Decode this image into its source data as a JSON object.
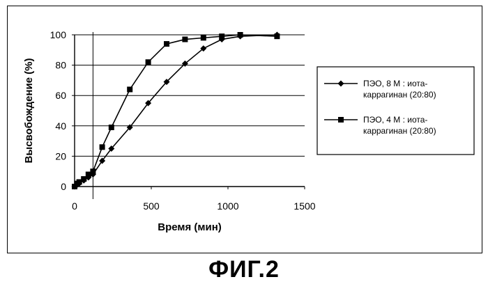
{
  "figure_caption": "ФИГ.2",
  "chart_data": {
    "type": "line",
    "title": "",
    "xlabel": "Время (мин)",
    "ylabel": "Высвобождение (%)",
    "xlim": [
      0,
      1500
    ],
    "ylim": [
      0,
      100
    ],
    "x_ticks": [
      "0",
      "500",
      "1000",
      "1500"
    ],
    "y_ticks": [
      "0",
      "20",
      "40",
      "60",
      "80",
      "100"
    ],
    "grid": "horizontal",
    "legend_position": "right",
    "series": [
      {
        "name_lines": [
          "ПЭО, 8 М : иота-",
          "каррагинан (20:80)"
        ],
        "marker": "diamond",
        "color": "#000000",
        "x": [
          0,
          15,
          30,
          60,
          90,
          120,
          180,
          240,
          360,
          480,
          600,
          720,
          840,
          960,
          1080,
          1320
        ],
        "y": [
          0,
          1,
          2,
          4,
          6,
          8,
          17,
          25,
          39,
          55,
          69,
          81,
          91,
          97,
          99,
          100
        ]
      },
      {
        "name_lines": [
          "ПЭО, 4 М : иота-",
          "каррагинан (20:80)"
        ],
        "marker": "square",
        "color": "#000000",
        "x": [
          0,
          15,
          30,
          60,
          90,
          120,
          180,
          240,
          360,
          480,
          600,
          720,
          840,
          960,
          1080,
          1320
        ],
        "y": [
          0,
          2,
          3,
          5,
          8,
          10,
          26,
          39,
          64,
          82,
          94,
          97,
          98,
          99,
          100,
          99
        ]
      }
    ]
  }
}
